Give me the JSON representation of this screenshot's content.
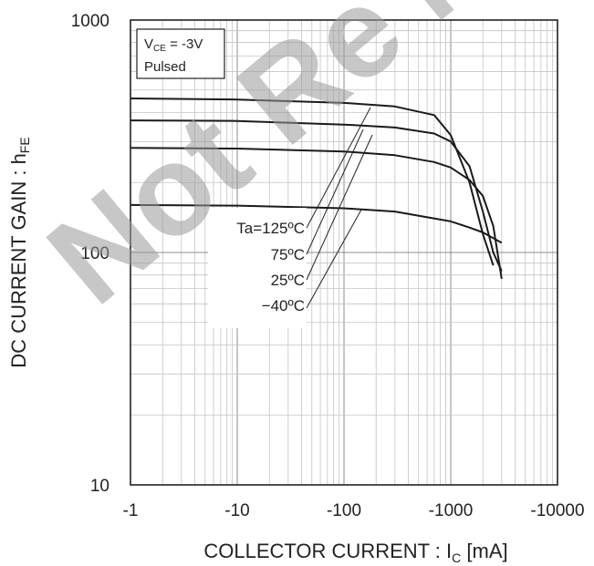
{
  "chart_data": {
    "type": "line",
    "x_scale": "log-negative",
    "y_scale": "log",
    "xlim": [
      -1,
      -10000
    ],
    "ylim": [
      10,
      1000
    ],
    "x_ticks": [
      -1,
      -10,
      -100,
      -1000,
      -10000
    ],
    "x_tick_labels": [
      "-1",
      "-10",
      "-100",
      "-1000",
      "-10000"
    ],
    "y_ticks": [
      10,
      100,
      1000
    ],
    "y_tick_labels": [
      "10",
      "100",
      "1000"
    ],
    "ylabel": {
      "main": "DC CURRENT GAIN : h",
      "sub": "FE"
    },
    "xlabel": {
      "main": "COLLECTOR CURRENT : I",
      "sub": "C",
      "unit": " [mA]"
    },
    "grid": true,
    "conditions": {
      "line1_main": "V",
      "line1_sub": "CE",
      "line1_rest": " = -3V",
      "line2": "Pulsed"
    },
    "series": [
      {
        "name": "Ta=125ºC",
        "x": [
          -1,
          -10,
          -100,
          -300,
          -700,
          -1000,
          -1500,
          -2000,
          -2500
        ],
        "y": [
          460,
          455,
          440,
          425,
          390,
          320,
          200,
          120,
          88
        ]
      },
      {
        "name": "75ºC",
        "x": [
          -1,
          -10,
          -100,
          -300,
          -700,
          -1000,
          -1500,
          -2000,
          -2500,
          -3000
        ],
        "y": [
          370,
          368,
          355,
          345,
          325,
          300,
          235,
          150,
          100,
          83
        ]
      },
      {
        "name": "25ºC",
        "x": [
          -1,
          -10,
          -100,
          -300,
          -700,
          -1000,
          -1500,
          -2000,
          -2500,
          -3000
        ],
        "y": [
          282,
          280,
          272,
          262,
          245,
          232,
          205,
          175,
          130,
          77
        ]
      },
      {
        "name": "−40ºC",
        "x": [
          -1,
          -10,
          -100,
          -300,
          -1000,
          -1500,
          -2000,
          -3000
        ],
        "y": [
          160,
          159,
          155,
          150,
          136,
          128,
          122,
          110
        ]
      }
    ],
    "watermark": "Not Recommended for New Designs"
  }
}
